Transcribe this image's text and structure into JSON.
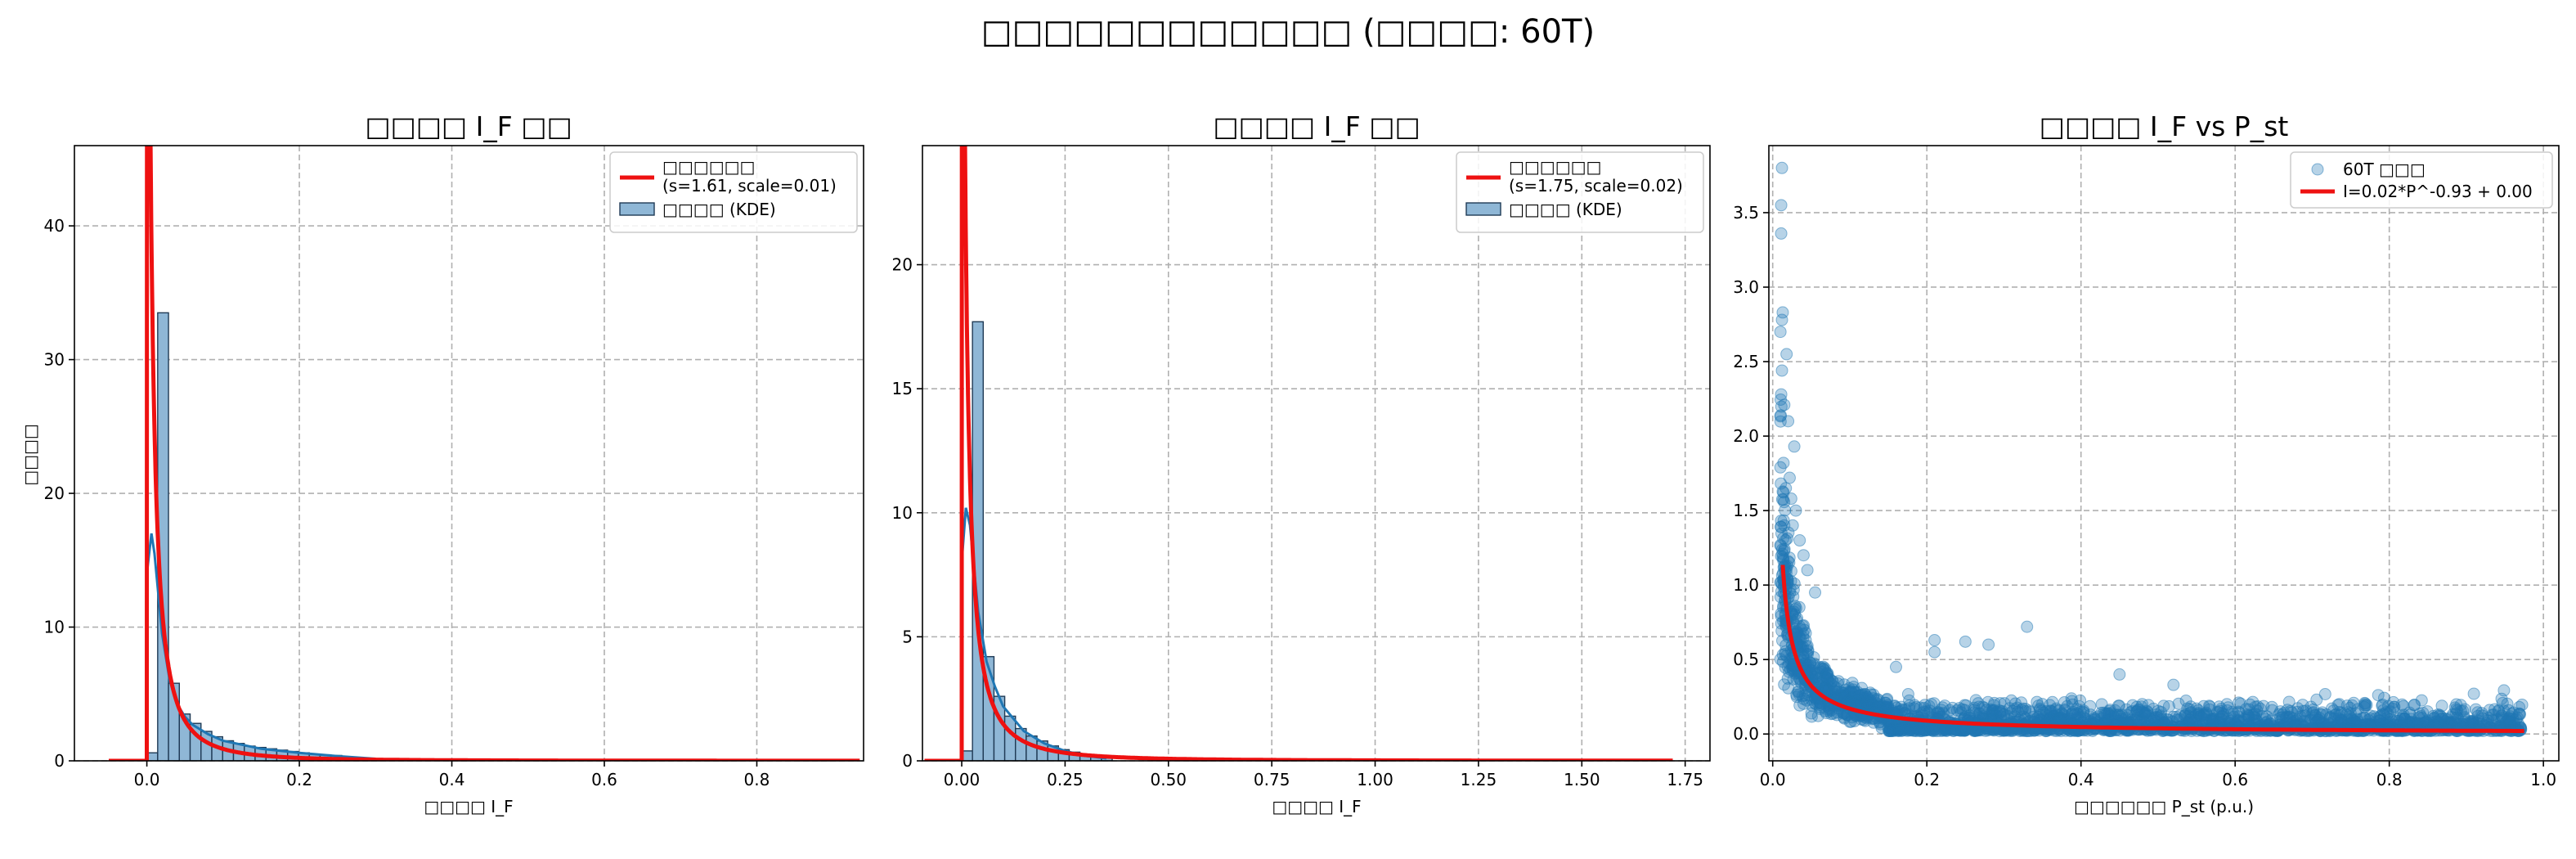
{
  "figure": {
    "title": "□□□□□□□□□□□□ (□□□□: 60T)"
  },
  "colors": {
    "bar_fill": "#8fb7d6",
    "bar_edge": "#1f3a55",
    "kde": "#1f77b4",
    "fit": "#ee1111",
    "scatter": "#1f77b4"
  },
  "chart_data": [
    {
      "type": "bar",
      "title": "□□□□ I_F □□",
      "xlabel": "□□□□ I_F",
      "ylabel": "□□□□",
      "xlim": [
        -0.095,
        0.94
      ],
      "ylim": [
        0,
        46
      ],
      "xticks": [
        0.0,
        0.2,
        0.4,
        0.6,
        0.8
      ],
      "xtick_labels": [
        "0.0",
        "0.2",
        "0.4",
        "0.6",
        "0.8"
      ],
      "yticks": [
        0,
        10,
        20,
        30,
        40
      ],
      "ytick_labels": [
        "0",
        "10",
        "20",
        "30",
        "40"
      ],
      "grid": true,
      "legend_position": "top-right",
      "legend": [
        {
          "type": "line",
          "label": "□□□□□□",
          "label2": "(s=1.61, scale=0.01)"
        },
        {
          "type": "patch",
          "label": "□□□□ (KDE)"
        }
      ],
      "bins": {
        "start": 0.0,
        "width": 0.0142
      },
      "hist_values": [
        0.6,
        33.5,
        5.8,
        3.5,
        2.8,
        2.2,
        1.8,
        1.5,
        1.3,
        1.1,
        1.0,
        0.9,
        0.8,
        0.7,
        0.6,
        0.5,
        0.45,
        0.4,
        0.3,
        0.25
      ],
      "kde_x": [
        0.0,
        0.006,
        0.01,
        0.02,
        0.03,
        0.04,
        0.05,
        0.06,
        0.08,
        0.1,
        0.15,
        0.2,
        0.25,
        0.3
      ],
      "kde_y": [
        14.0,
        17.0,
        15.5,
        9.5,
        6.0,
        4.2,
        3.3,
        2.7,
        2.0,
        1.5,
        0.9,
        0.6,
        0.35,
        0.15
      ],
      "fit": {
        "s": 1.61,
        "scale": 0.01,
        "x_range": [
          -0.05,
          0.935
        ]
      }
    },
    {
      "type": "bar",
      "title": "□□□□ I_F □□",
      "xlabel": "□□□□ I_F",
      "ylabel": "",
      "xlim": [
        -0.095,
        1.81
      ],
      "ylim": [
        0,
        24.8
      ],
      "xticks": [
        0.0,
        0.25,
        0.5,
        0.75,
        1.0,
        1.25,
        1.5,
        1.75
      ],
      "xtick_labels": [
        "0.00",
        "0.25",
        "0.50",
        "0.75",
        "1.00",
        "1.25",
        "1.50",
        "1.75"
      ],
      "yticks": [
        0,
        5,
        10,
        15,
        20
      ],
      "ytick_labels": [
        "0",
        "5",
        "10",
        "15",
        "20"
      ],
      "grid": true,
      "legend_position": "top-right",
      "legend": [
        {
          "type": "line",
          "label": "□□□□□□",
          "label2": "(s=1.75, scale=0.02)"
        },
        {
          "type": "patch",
          "label": "□□□□ (KDE)"
        }
      ],
      "bins": {
        "start": 0.0,
        "width": 0.026
      },
      "hist_values": [
        0.4,
        17.7,
        4.2,
        2.6,
        1.8,
        1.3,
        1.0,
        0.8,
        0.6,
        0.45,
        0.35,
        0.25,
        0.18,
        0.12
      ],
      "kde_x": [
        0.0,
        0.01,
        0.02,
        0.04,
        0.06,
        0.08,
        0.1,
        0.15,
        0.2,
        0.25,
        0.3,
        0.35
      ],
      "kde_y": [
        8.0,
        10.2,
        9.5,
        6.0,
        4.0,
        3.0,
        2.2,
        1.2,
        0.7,
        0.4,
        0.2,
        0.1
      ],
      "fit": {
        "s": 1.75,
        "scale": 0.02,
        "x_range": [
          -0.09,
          1.72
        ]
      }
    },
    {
      "type": "scatter",
      "title": "□□□□ I_F vs P_st",
      "xlabel": "□□□□□□ P_st (p.u.)",
      "ylabel": "",
      "xlim": [
        -0.005,
        1.02
      ],
      "ylim": [
        -0.18,
        3.95
      ],
      "xticks": [
        0.0,
        0.2,
        0.4,
        0.6,
        0.8,
        1.0
      ],
      "xtick_labels": [
        "0.0",
        "0.2",
        "0.4",
        "0.6",
        "0.8",
        "1.0"
      ],
      "yticks": [
        0.0,
        0.5,
        1.0,
        1.5,
        2.0,
        2.5,
        3.0,
        3.5
      ],
      "ytick_labels": [
        "0.0",
        "0.5",
        "1.0",
        "1.5",
        "2.0",
        "2.5",
        "3.0",
        "3.5"
      ],
      "grid": true,
      "legend_position": "top-right",
      "legend": [
        {
          "type": "marker",
          "label": "60T □□□"
        },
        {
          "type": "line",
          "label": "I=0.02*P^-0.93 + 0.00"
        }
      ],
      "fit": {
        "a": 0.02,
        "b": -0.93,
        "c": 0.0,
        "x_range": [
          0.013,
          0.975
        ]
      },
      "points_summary": {
        "n_approx": 2500,
        "x_range": [
          0.01,
          0.975
        ]
      },
      "outliers": [
        [
          0.012,
          3.8
        ],
        [
          0.011,
          3.55
        ],
        [
          0.011,
          3.36
        ],
        [
          0.013,
          2.83
        ],
        [
          0.012,
          2.78
        ],
        [
          0.01,
          2.7
        ],
        [
          0.018,
          2.55
        ],
        [
          0.012,
          2.44
        ],
        [
          0.011,
          2.28
        ],
        [
          0.015,
          2.21
        ],
        [
          0.02,
          2.1
        ],
        [
          0.028,
          1.93
        ],
        [
          0.014,
          1.82
        ],
        [
          0.022,
          1.72
        ],
        [
          0.017,
          1.65
        ],
        [
          0.024,
          1.58
        ],
        [
          0.03,
          1.5
        ],
        [
          0.035,
          1.3
        ],
        [
          0.04,
          1.2
        ],
        [
          0.026,
          1.4
        ],
        [
          0.045,
          1.1
        ],
        [
          0.055,
          0.95
        ],
        [
          0.21,
          0.63
        ],
        [
          0.33,
          0.72
        ],
        [
          0.25,
          0.62
        ],
        [
          0.21,
          0.55
        ],
        [
          0.28,
          0.6
        ],
        [
          0.45,
          0.4
        ],
        [
          0.52,
          0.33
        ],
        [
          0.16,
          0.45
        ]
      ]
    }
  ]
}
